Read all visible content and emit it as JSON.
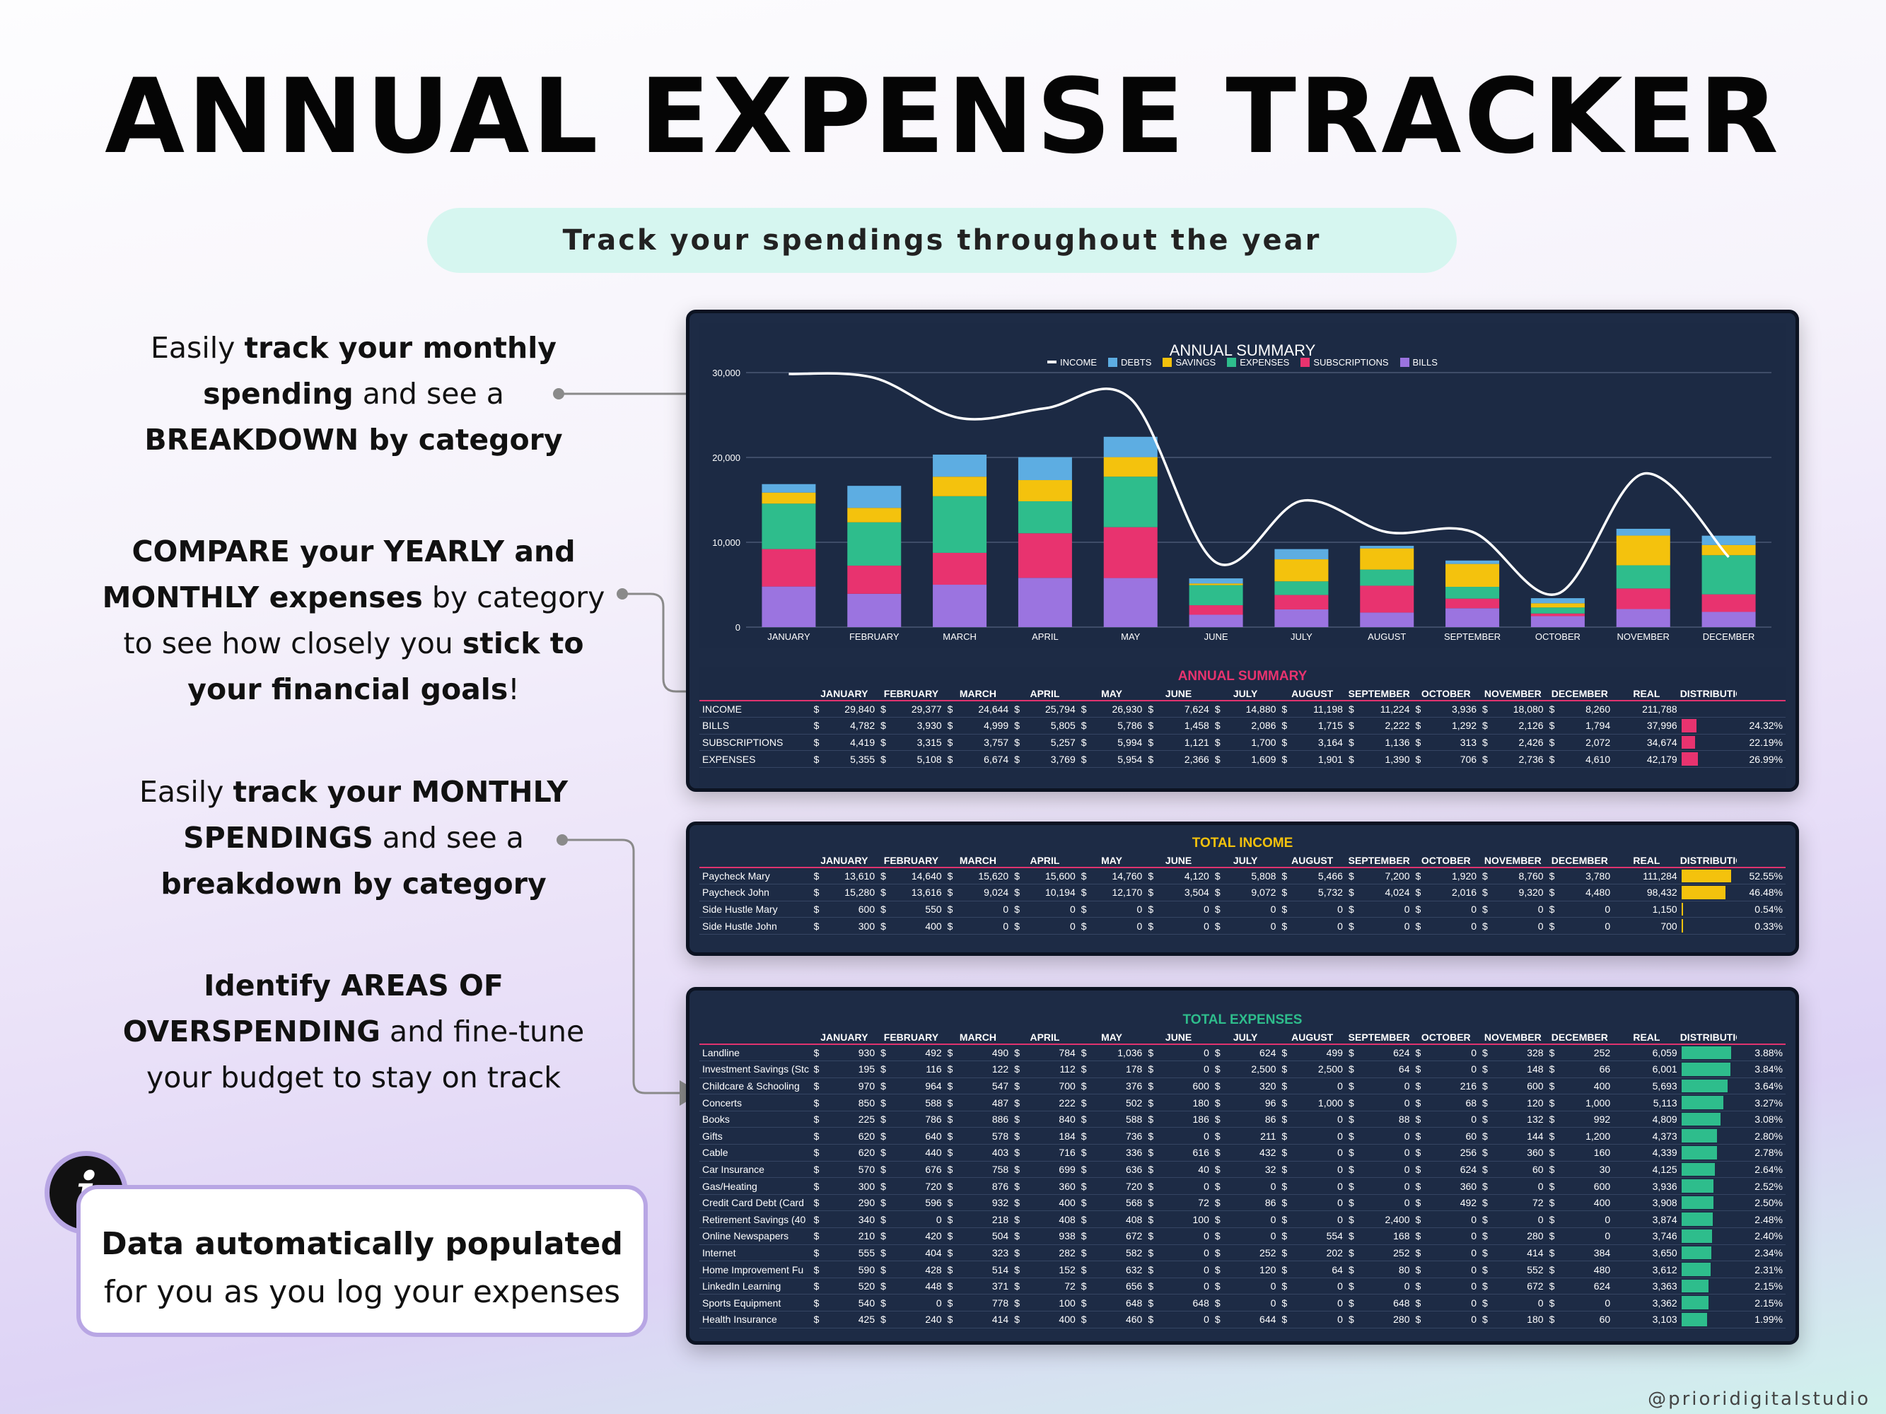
{
  "page": {
    "title": "ANNUAL EXPENSE TRACKER",
    "subtitle": "Track your spendings throughout the year",
    "watermark": "@prioridigitalstudio"
  },
  "features": [
    {
      "parts": [
        {
          "t": "Easily ",
          "b": false
        },
        {
          "t": "track your monthly",
          "b": true
        },
        {
          "t": "\n",
          "b": false
        },
        {
          "t": "spending",
          "b": true
        },
        {
          "t": " and see a",
          "b": false
        },
        {
          "t": "\n",
          "b": false
        },
        {
          "t": "BREAKDOWN by category",
          "b": true
        }
      ]
    },
    {
      "parts": [
        {
          "t": "COMPARE your YEARLY and",
          "b": true
        },
        {
          "t": "\n",
          "b": false
        },
        {
          "t": "MONTHLY expenses",
          "b": true
        },
        {
          "t": " by category",
          "b": false
        },
        {
          "t": "\n",
          "b": false
        },
        {
          "t": "to see how closely you ",
          "b": false
        },
        {
          "t": "stick to",
          "b": true
        },
        {
          "t": "\n",
          "b": false
        },
        {
          "t": "your financial goals",
          "b": true
        },
        {
          "t": "!",
          "b": false
        }
      ]
    },
    {
      "parts": [
        {
          "t": "Easily ",
          "b": false
        },
        {
          "t": "track your MONTHLY",
          "b": true
        },
        {
          "t": "\n",
          "b": false
        },
        {
          "t": "SPENDINGS",
          "b": true
        },
        {
          "t": " and see a",
          "b": false
        },
        {
          "t": "\n",
          "b": false
        },
        {
          "t": "breakdown by category",
          "b": true
        }
      ]
    },
    {
      "parts": [
        {
          "t": "Identify AREAS OF",
          "b": true
        },
        {
          "t": "\n",
          "b": false
        },
        {
          "t": "OVERSPENDING",
          "b": true
        },
        {
          "t": " and fine-tune",
          "b": false
        },
        {
          "t": "\n",
          "b": false
        },
        {
          "t": "your budget to stay on track",
          "b": false
        }
      ]
    }
  ],
  "callout": {
    "icon": "info-icon",
    "glyph": "i",
    "line1": "Data automatically populated",
    "line2": "for you as you log your expenses"
  },
  "colors": {
    "income": "#ffffff",
    "debts": "#5dade2",
    "savings": "#f4c20d",
    "expenses": "#2ebd8c",
    "subscriptions": "#e8336f",
    "bills": "#9b74e0",
    "income_bar": "#f4c20d",
    "expense_bar": "#2ebd8c",
    "summary_bar": "#e8336f"
  },
  "chart_data": {
    "type": "bar",
    "title": "ANNUAL SUMMARY",
    "stacked": true,
    "categories": [
      "JANUARY",
      "FEBRUARY",
      "MARCH",
      "APRIL",
      "MAY",
      "JUNE",
      "JULY",
      "AUGUST",
      "SEPTEMBER",
      "OCTOBER",
      "NOVEMBER",
      "DECEMBER"
    ],
    "y_ticks": [
      "0",
      "10,000",
      "20,000",
      "30,000"
    ],
    "ylim": [
      0,
      30000
    ],
    "legend": [
      "INCOME",
      "DEBTS",
      "SAVINGS",
      "EXPENSES",
      "SUBSCRIPTIONS",
      "BILLS"
    ],
    "series": [
      {
        "name": "BILLS",
        "key": "bills",
        "values": [
          4782,
          3930,
          4999,
          5805,
          5786,
          1458,
          2086,
          1715,
          2222,
          1292,
          2126,
          1794
        ]
      },
      {
        "name": "SUBSCRIPTIONS",
        "key": "subscriptions",
        "values": [
          4419,
          3315,
          3757,
          5257,
          5994,
          1121,
          1700,
          3164,
          1136,
          313,
          2426,
          2072
        ]
      },
      {
        "name": "EXPENSES",
        "key": "expenses",
        "values": [
          5355,
          5108,
          6674,
          3769,
          5954,
          2366,
          1609,
          1901,
          1390,
          706,
          2736,
          4610
        ]
      },
      {
        "name": "SAVINGS",
        "key": "savings",
        "values": [
          1300,
          1700,
          2300,
          2500,
          2300,
          200,
          2600,
          2500,
          2700,
          500,
          3500,
          1200
        ]
      },
      {
        "name": "DEBTS",
        "key": "debts",
        "values": [
          1000,
          2600,
          2600,
          2700,
          2400,
          600,
          1200,
          300,
          400,
          600,
          800,
          1100
        ]
      }
    ],
    "line": {
      "name": "INCOME",
      "key": "income",
      "values": [
        29840,
        29377,
        24644,
        25794,
        26930,
        7624,
        14880,
        11198,
        11224,
        3936,
        18080,
        8260
      ]
    }
  },
  "summary_table": {
    "title": "ANNUAL SUMMARY",
    "columns": [
      "",
      "JANUARY",
      "FEBRUARY",
      "MARCH",
      "APRIL",
      "MAY",
      "JUNE",
      "JULY",
      "AUGUST",
      "SEPTEMBER",
      "OCTOBER",
      "NOVEMBER",
      "DECEMBER",
      "REAL",
      "DISTRIBUTION",
      ""
    ],
    "rows": [
      {
        "label": "INCOME",
        "values": [
          "29,840",
          "29,377",
          "24,644",
          "25,794",
          "26,930",
          "7,624",
          "14,880",
          "11,198",
          "11,224",
          "3,936",
          "18,080",
          "8,260"
        ],
        "real": "211,788",
        "pct": "",
        "share": 0
      },
      {
        "label": "BILLS",
        "values": [
          "4,782",
          "3,930",
          "4,999",
          "5,805",
          "5,786",
          "1,458",
          "2,086",
          "1,715",
          "2,222",
          "1,292",
          "2,126",
          "1,794"
        ],
        "real": "37,996",
        "pct": "24.32%",
        "share": 0.2432
      },
      {
        "label": "SUBSCRIPTIONS",
        "values": [
          "4,419",
          "3,315",
          "3,757",
          "5,257",
          "5,994",
          "1,121",
          "1,700",
          "3,164",
          "1,136",
          "313",
          "2,426",
          "2,072"
        ],
        "real": "34,674",
        "pct": "22.19%",
        "share": 0.2219
      },
      {
        "label": "EXPENSES",
        "values": [
          "5,355",
          "5,108",
          "6,674",
          "3,769",
          "5,954",
          "2,366",
          "1,609",
          "1,901",
          "1,390",
          "706",
          "2,736",
          "4,610"
        ],
        "real": "42,179",
        "pct": "26.99%",
        "share": 0.2699
      }
    ]
  },
  "income_table": {
    "title": "TOTAL INCOME",
    "columns": [
      "",
      "JANUARY",
      "FEBRUARY",
      "MARCH",
      "APRIL",
      "MAY",
      "JUNE",
      "JULY",
      "AUGUST",
      "SEPTEMBER",
      "OCTOBER",
      "NOVEMBER",
      "DECEMBER",
      "REAL",
      "DISTRIBUTION",
      ""
    ],
    "rows": [
      {
        "label": "Paycheck Mary",
        "values": [
          "13,610",
          "14,640",
          "15,620",
          "15,600",
          "14,760",
          "4,120",
          "5,808",
          "5,466",
          "7,200",
          "1,920",
          "8,760",
          "3,780"
        ],
        "real": "111,284",
        "pct": "52.55%",
        "share": 0.5255
      },
      {
        "label": "Paycheck John",
        "values": [
          "15,280",
          "13,616",
          "9,024",
          "10,194",
          "12,170",
          "3,504",
          "9,072",
          "5,732",
          "4,024",
          "2,016",
          "9,320",
          "4,480"
        ],
        "real": "98,432",
        "pct": "46.48%",
        "share": 0.4648
      },
      {
        "label": "Side Hustle Mary",
        "values": [
          "600",
          "550",
          "0",
          "0",
          "0",
          "0",
          "0",
          "0",
          "0",
          "0",
          "0",
          "0"
        ],
        "real": "1,150",
        "pct": "0.54%",
        "share": 0.0054
      },
      {
        "label": "Side Hustle John",
        "values": [
          "300",
          "400",
          "0",
          "0",
          "0",
          "0",
          "0",
          "0",
          "0",
          "0",
          "0",
          "0"
        ],
        "real": "700",
        "pct": "0.33%",
        "share": 0.0033
      }
    ]
  },
  "expense_table": {
    "title": "TOTAL EXPENSES",
    "columns": [
      "",
      "JANUARY",
      "FEBRUARY",
      "MARCH",
      "APRIL",
      "MAY",
      "JUNE",
      "JULY",
      "AUGUST",
      "SEPTEMBER",
      "OCTOBER",
      "NOVEMBER",
      "DECEMBER",
      "REAL",
      "DISTRIBUTION",
      ""
    ],
    "rows": [
      {
        "label": "Landline",
        "values": [
          "930",
          "492",
          "490",
          "784",
          "1,036",
          "0",
          "624",
          "499",
          "624",
          "0",
          "328",
          "252"
        ],
        "real": "6,059",
        "pct": "3.88%",
        "share": 0.0388
      },
      {
        "label": "Investment Savings (Stc",
        "values": [
          "195",
          "116",
          "122",
          "112",
          "178",
          "0",
          "2,500",
          "2,500",
          "64",
          "0",
          "148",
          "66"
        ],
        "real": "6,001",
        "pct": "3.84%",
        "share": 0.0384
      },
      {
        "label": "Childcare & Schooling",
        "values": [
          "970",
          "964",
          "547",
          "700",
          "376",
          "600",
          "320",
          "0",
          "0",
          "216",
          "600",
          "400"
        ],
        "real": "5,693",
        "pct": "3.64%",
        "share": 0.0364
      },
      {
        "label": "Concerts",
        "values": [
          "850",
          "588",
          "487",
          "222",
          "502",
          "180",
          "96",
          "1,000",
          "0",
          "68",
          "120",
          "1,000"
        ],
        "real": "5,113",
        "pct": "3.27%",
        "share": 0.0327
      },
      {
        "label": "Books",
        "values": [
          "225",
          "786",
          "886",
          "840",
          "588",
          "186",
          "86",
          "0",
          "88",
          "0",
          "132",
          "992"
        ],
        "real": "4,809",
        "pct": "3.08%",
        "share": 0.0308
      },
      {
        "label": "Gifts",
        "values": [
          "620",
          "640",
          "578",
          "184",
          "736",
          "0",
          "211",
          "0",
          "0",
          "60",
          "144",
          "1,200"
        ],
        "real": "4,373",
        "pct": "2.80%",
        "share": 0.028
      },
      {
        "label": "Cable",
        "values": [
          "620",
          "440",
          "403",
          "716",
          "336",
          "616",
          "432",
          "0",
          "0",
          "256",
          "360",
          "160"
        ],
        "real": "4,339",
        "pct": "2.78%",
        "share": 0.0278
      },
      {
        "label": "Car Insurance",
        "values": [
          "570",
          "676",
          "758",
          "699",
          "636",
          "40",
          "32",
          "0",
          "0",
          "624",
          "60",
          "30"
        ],
        "real": "4,125",
        "pct": "2.64%",
        "share": 0.0264
      },
      {
        "label": "Gas/Heating",
        "values": [
          "300",
          "720",
          "876",
          "360",
          "720",
          "0",
          "0",
          "0",
          "0",
          "360",
          "0",
          "600"
        ],
        "real": "3,936",
        "pct": "2.52%",
        "share": 0.0252
      },
      {
        "label": "Credit Card Debt (Card",
        "values": [
          "290",
          "596",
          "932",
          "400",
          "568",
          "72",
          "86",
          "0",
          "0",
          "492",
          "72",
          "400"
        ],
        "real": "3,908",
        "pct": "2.50%",
        "share": 0.025
      },
      {
        "label": "Retirement Savings (40",
        "values": [
          "340",
          "0",
          "218",
          "408",
          "408",
          "100",
          "0",
          "0",
          "2,400",
          "0",
          "0",
          "0"
        ],
        "real": "3,874",
        "pct": "2.48%",
        "share": 0.0248
      },
      {
        "label": "Online Newspapers",
        "values": [
          "210",
          "420",
          "504",
          "938",
          "672",
          "0",
          "0",
          "554",
          "168",
          "0",
          "280",
          "0"
        ],
        "real": "3,746",
        "pct": "2.40%",
        "share": 0.024
      },
      {
        "label": "Internet",
        "values": [
          "555",
          "404",
          "323",
          "282",
          "582",
          "0",
          "252",
          "202",
          "252",
          "0",
          "414",
          "384"
        ],
        "real": "3,650",
        "pct": "2.34%",
        "share": 0.0234
      },
      {
        "label": "Home Improvement Fu",
        "values": [
          "590",
          "428",
          "514",
          "152",
          "632",
          "0",
          "120",
          "64",
          "80",
          "0",
          "552",
          "480"
        ],
        "real": "3,612",
        "pct": "2.31%",
        "share": 0.0231
      },
      {
        "label": "LinkedIn Learning",
        "values": [
          "520",
          "448",
          "371",
          "72",
          "656",
          "0",
          "0",
          "0",
          "0",
          "0",
          "672",
          "624"
        ],
        "real": "3,363",
        "pct": "2.15%",
        "share": 0.0215
      },
      {
        "label": "Sports Equipment",
        "values": [
          "540",
          "0",
          "778",
          "100",
          "648",
          "648",
          "0",
          "0",
          "648",
          "0",
          "0",
          "0"
        ],
        "real": "3,362",
        "pct": "2.15%",
        "share": 0.0215
      },
      {
        "label": "Health Insurance",
        "values": [
          "425",
          "240",
          "414",
          "400",
          "460",
          "0",
          "644",
          "0",
          "280",
          "0",
          "180",
          "60"
        ],
        "real": "3,103",
        "pct": "1.99%",
        "share": 0.0199
      }
    ]
  }
}
